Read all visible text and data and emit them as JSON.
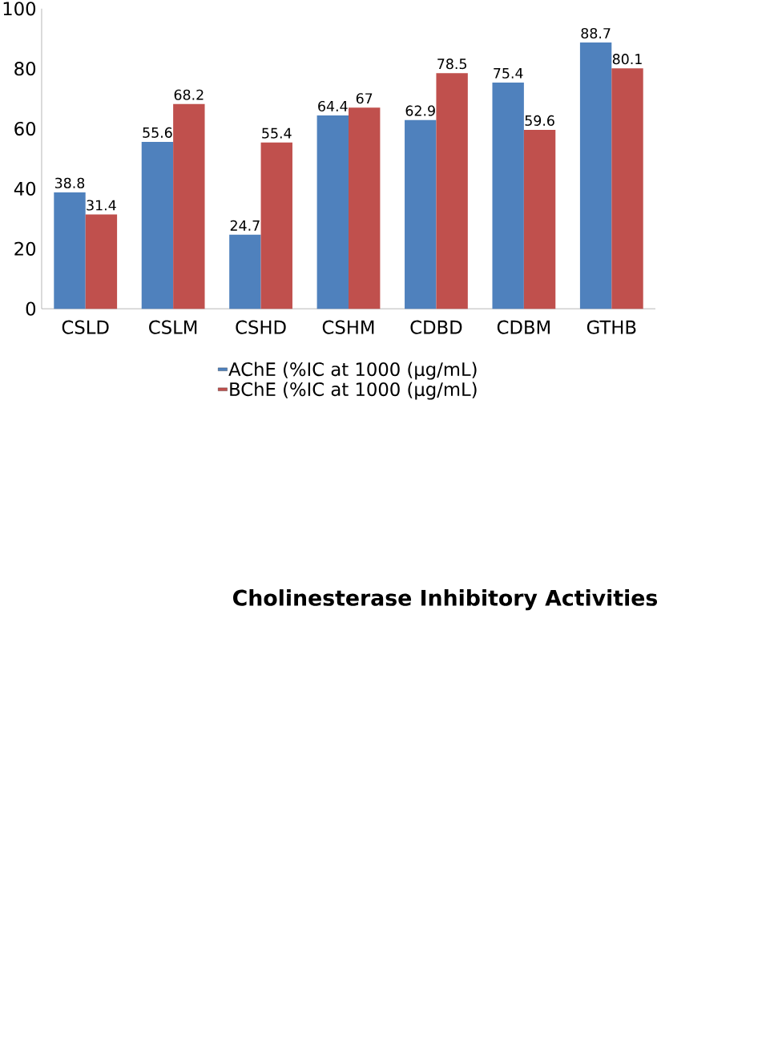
{
  "chart_data": {
    "type": "bar",
    "title": "Cholinesterase Inhibitory Activities",
    "categories": [
      "CSLD",
      "CSLM",
      "CSHD",
      "CSHM",
      "CDBD",
      "CDBM",
      "GTHB"
    ],
    "series": [
      {
        "name": "AChE (%IC at 1000 (µg/mL)",
        "color": "#4f81bd",
        "values": [
          38.8,
          55.6,
          24.7,
          64.4,
          62.9,
          75.4,
          88.7
        ]
      },
      {
        "name": "BChE  (%IC at 1000 (µg/mL)",
        "color": "#c0504d",
        "values": [
          31.4,
          68.2,
          55.4,
          67,
          78.5,
          59.6,
          80.1
        ]
      }
    ],
    "ylim": [
      0,
      100
    ],
    "yticks": [
      0,
      20,
      40,
      60,
      80,
      100
    ],
    "grid": false,
    "legend": "bottom",
    "data_labels": true
  }
}
